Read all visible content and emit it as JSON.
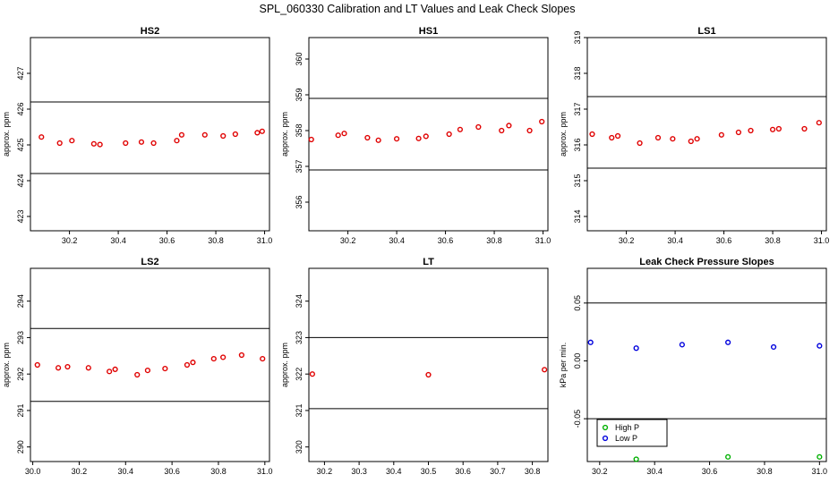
{
  "figure": {
    "title": "SPL_060330  Calibration and LT Values and Leak Check Slopes"
  },
  "chart_data": [
    {
      "type": "scatter",
      "title": "HS2",
      "ylabel": "approx. ppm",
      "xlim": [
        30.04,
        31.02
      ],
      "ylim": [
        422.6,
        428.0
      ],
      "xticks": [
        30.2,
        30.4,
        30.6,
        30.8,
        31.0
      ],
      "xtick_labels": [
        "30.2",
        "30.4",
        "30.6",
        "30.8",
        "31.0"
      ],
      "yticks": [
        423,
        424,
        425,
        426,
        427
      ],
      "ytick_labels": [
        "423",
        "424",
        "425",
        "426",
        "427"
      ],
      "hlines": [
        424.2,
        426.2
      ],
      "series": [
        {
          "color": "#e00000",
          "x": [
            30.085,
            30.16,
            30.21,
            30.3,
            30.325,
            30.43,
            30.495,
            30.545,
            30.64,
            30.66,
            30.755,
            30.83,
            30.88,
            30.97,
            30.99
          ],
          "y": [
            425.22,
            425.05,
            425.12,
            425.03,
            425.01,
            425.05,
            425.08,
            425.05,
            425.12,
            425.28,
            425.28,
            425.25,
            425.3,
            425.34,
            425.38
          ]
        }
      ]
    },
    {
      "type": "scatter",
      "title": "HS1",
      "ylabel": "approx. ppm",
      "xlim": [
        30.04,
        31.02
      ],
      "ylim": [
        355.2,
        360.6
      ],
      "xticks": [
        30.2,
        30.4,
        30.6,
        30.8,
        31.0
      ],
      "xtick_labels": [
        "30.2",
        "30.4",
        "30.6",
        "30.8",
        "31.0"
      ],
      "yticks": [
        356,
        357,
        358,
        359,
        360
      ],
      "ytick_labels": [
        "356",
        "357",
        "358",
        "359",
        "360"
      ],
      "hlines": [
        356.9,
        358.9
      ],
      "series": [
        {
          "color": "#e00000",
          "x": [
            30.05,
            30.16,
            30.185,
            30.28,
            30.325,
            30.4,
            30.49,
            30.52,
            30.615,
            30.66,
            30.735,
            30.83,
            30.86,
            30.945,
            30.995
          ],
          "y": [
            357.75,
            357.87,
            357.92,
            357.8,
            357.73,
            357.77,
            357.78,
            357.84,
            357.9,
            358.03,
            358.1,
            358.0,
            358.14,
            358.0,
            358.25
          ]
        }
      ]
    },
    {
      "type": "scatter",
      "title": "LS1",
      "ylabel": "approx. ppm",
      "xlim": [
        30.04,
        31.02
      ],
      "ylim": [
        313.6,
        319.0
      ],
      "xticks": [
        30.2,
        30.4,
        30.6,
        30.8,
        31.0
      ],
      "xtick_labels": [
        "30.2",
        "30.4",
        "30.6",
        "30.8",
        "31.0"
      ],
      "yticks": [
        314,
        315,
        316,
        317,
        318,
        319
      ],
      "ytick_labels": [
        "314",
        "315",
        "316",
        "317",
        "318",
        "319"
      ],
      "hlines": [
        315.35,
        317.35
      ],
      "series": [
        {
          "color": "#e00000",
          "x": [
            30.06,
            30.14,
            30.165,
            30.255,
            30.33,
            30.39,
            30.465,
            30.49,
            30.59,
            30.66,
            30.71,
            30.8,
            30.825,
            30.93,
            30.99
          ],
          "y": [
            316.3,
            316.2,
            316.25,
            316.05,
            316.2,
            316.17,
            316.1,
            316.17,
            316.28,
            316.35,
            316.4,
            316.43,
            316.45,
            316.45,
            316.62
          ]
        }
      ]
    },
    {
      "type": "scatter",
      "title": "LS2",
      "ylabel": "approx. ppm",
      "xlim": [
        29.99,
        31.02
      ],
      "ylim": [
        289.6,
        294.9
      ],
      "xticks": [
        30.0,
        30.2,
        30.4,
        30.6,
        30.8,
        31.0
      ],
      "xtick_labels": [
        "30.0",
        "30.2",
        "30.4",
        "30.6",
        "30.8",
        "31.0"
      ],
      "yticks": [
        290,
        291,
        292,
        293,
        294
      ],
      "ytick_labels": [
        "290",
        "291",
        "292",
        "293",
        "294"
      ],
      "hlines": [
        291.25,
        293.25
      ],
      "series": [
        {
          "color": "#e00000",
          "x": [
            30.02,
            30.11,
            30.15,
            30.24,
            30.33,
            30.355,
            30.45,
            30.495,
            30.57,
            30.665,
            30.69,
            30.78,
            30.82,
            30.9,
            30.99
          ],
          "y": [
            292.25,
            292.17,
            292.2,
            292.17,
            292.07,
            292.13,
            291.98,
            292.1,
            292.15,
            292.25,
            292.32,
            292.42,
            292.46,
            292.52,
            292.42
          ]
        }
      ]
    },
    {
      "type": "scatter",
      "title": "LT",
      "ylabel": "approx. ppm",
      "xlim": [
        30.155,
        30.845
      ],
      "ylim": [
        319.6,
        324.9
      ],
      "xticks": [
        30.2,
        30.3,
        30.4,
        30.5,
        30.6,
        30.7,
        30.8
      ],
      "xtick_labels": [
        "30.2",
        "30.3",
        "30.4",
        "30.5",
        "30.6",
        "30.7",
        "30.8"
      ],
      "yticks": [
        320,
        321,
        322,
        323,
        324
      ],
      "ytick_labels": [
        "320",
        "321",
        "322",
        "323",
        "324"
      ],
      "hlines": [
        321.05,
        323.0
      ],
      "series": [
        {
          "color": "#e00000",
          "x": [
            30.165,
            30.5,
            30.835
          ],
          "y": [
            322.0,
            321.98,
            322.12
          ]
        }
      ]
    },
    {
      "type": "scatter",
      "title": "Leak Check Pressure Slopes",
      "ylabel": "kPa per min.",
      "xlim": [
        30.155,
        31.025
      ],
      "ylim": [
        -0.087,
        0.08
      ],
      "xticks": [
        30.2,
        30.4,
        30.6,
        30.8,
        31.0
      ],
      "xtick_labels": [
        "30.2",
        "30.4",
        "30.6",
        "30.8",
        "31.0"
      ],
      "yticks": [
        -0.05,
        0.0,
        0.05
      ],
      "ytick_labels": [
        "-0.05",
        "0.00",
        "0.05"
      ],
      "hlines": [
        -0.05,
        0.05
      ],
      "legend": {
        "position": "bottom-left"
      },
      "series": [
        {
          "name": "High P",
          "color": "#00b000",
          "x": [
            30.333,
            30.667,
            31.0
          ],
          "y": [
            -0.085,
            -0.083,
            -0.083
          ]
        },
        {
          "name": "Low P",
          "color": "#0000dd",
          "x": [
            30.167,
            30.333,
            30.5,
            30.667,
            30.833,
            31.0
          ],
          "y": [
            0.016,
            0.011,
            0.014,
            0.016,
            0.012,
            0.013
          ]
        }
      ]
    }
  ]
}
